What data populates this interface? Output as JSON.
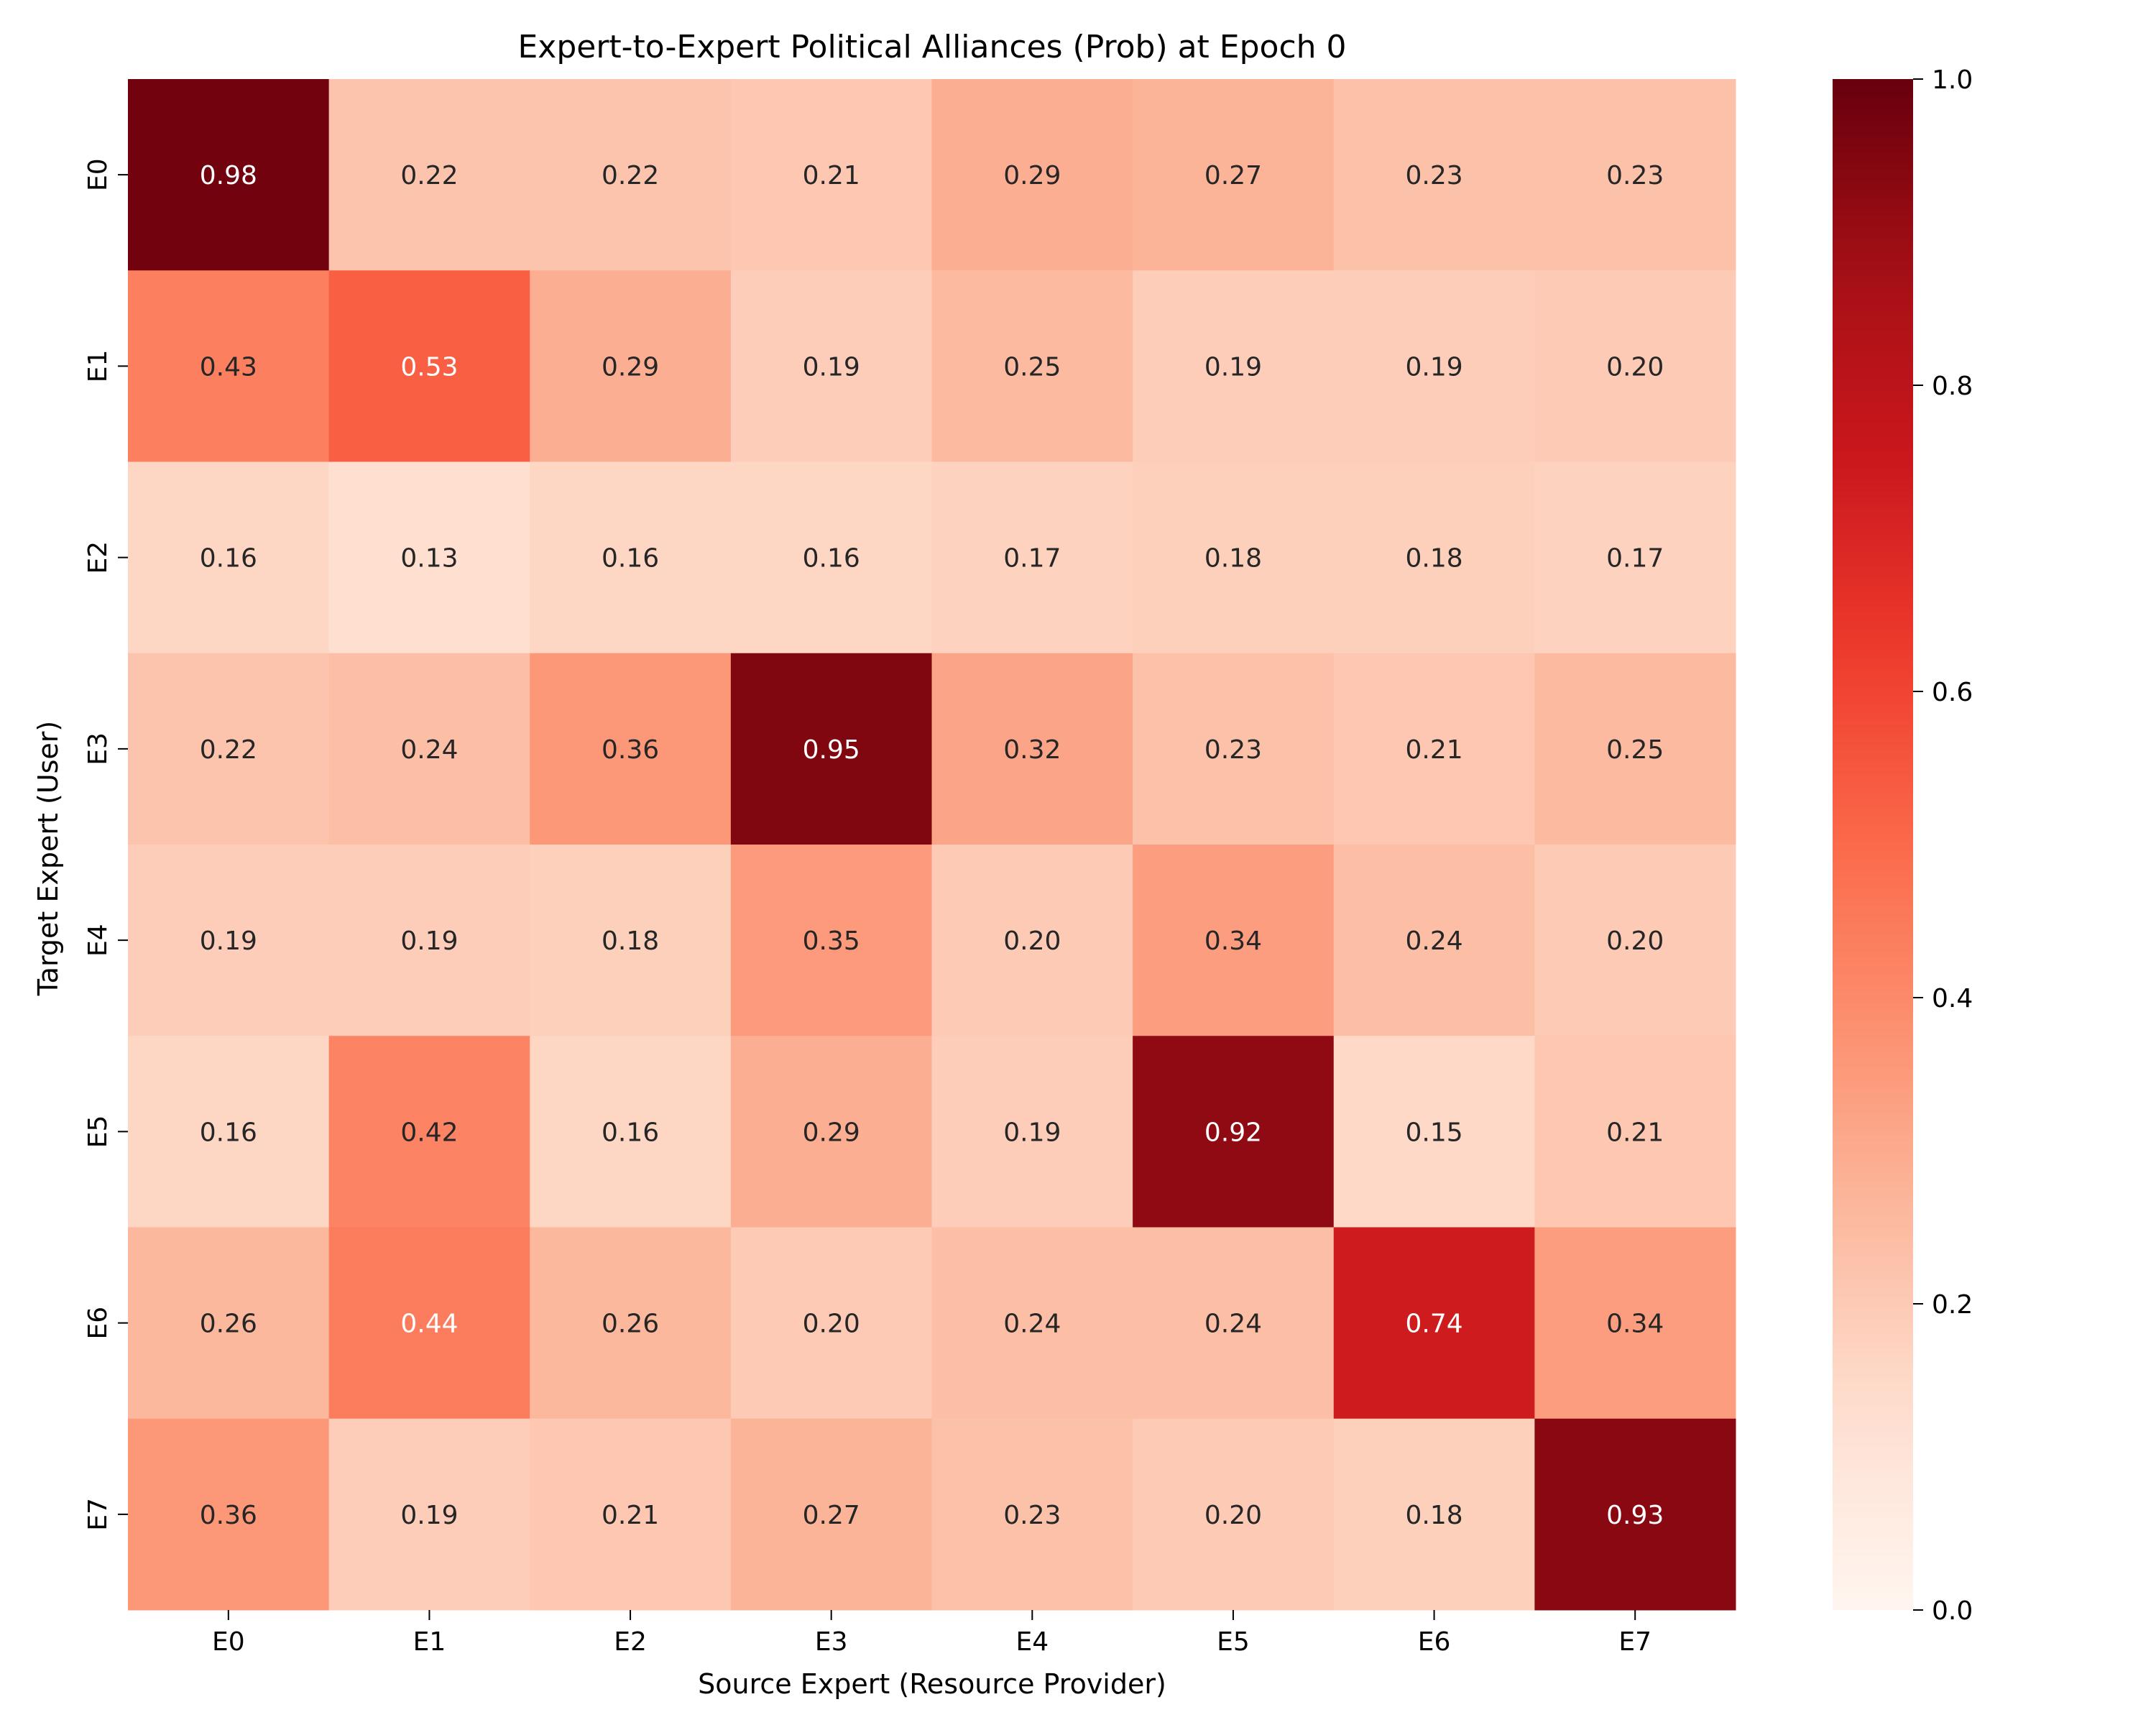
{
  "chart_data": {
    "type": "heatmap",
    "title": "Expert-to-Expert Political Alliances (Prob) at Epoch 0",
    "xlabel": "Source Expert (Resource Provider)",
    "ylabel": "Target Expert (User)",
    "x_categories": [
      "E0",
      "E1",
      "E2",
      "E3",
      "E4",
      "E5",
      "E6",
      "E7"
    ],
    "y_categories": [
      "E0",
      "E1",
      "E2",
      "E3",
      "E4",
      "E5",
      "E6",
      "E7"
    ],
    "values": [
      [
        0.98,
        0.22,
        0.22,
        0.21,
        0.29,
        0.27,
        0.23,
        0.23
      ],
      [
        0.43,
        0.53,
        0.29,
        0.19,
        0.25,
        0.19,
        0.19,
        0.2
      ],
      [
        0.16,
        0.13,
        0.16,
        0.16,
        0.17,
        0.18,
        0.18,
        0.17
      ],
      [
        0.22,
        0.24,
        0.36,
        0.95,
        0.32,
        0.23,
        0.21,
        0.25
      ],
      [
        0.19,
        0.19,
        0.18,
        0.35,
        0.2,
        0.34,
        0.24,
        0.2
      ],
      [
        0.16,
        0.42,
        0.16,
        0.29,
        0.19,
        0.92,
        0.15,
        0.21
      ],
      [
        0.26,
        0.44,
        0.26,
        0.2,
        0.24,
        0.24,
        0.74,
        0.34
      ],
      [
        0.36,
        0.19,
        0.21,
        0.27,
        0.23,
        0.2,
        0.18,
        0.93
      ]
    ],
    "value_format": "0.00",
    "colormap": "Reds",
    "vmin": 0.0,
    "vmax": 1.0,
    "colorbar_ticks": [
      "0.0",
      "0.2",
      "0.4",
      "0.6",
      "0.8",
      "1.0"
    ],
    "colorbar_tick_values": [
      0.0,
      0.2,
      0.4,
      0.6,
      0.8,
      1.0
    ]
  }
}
